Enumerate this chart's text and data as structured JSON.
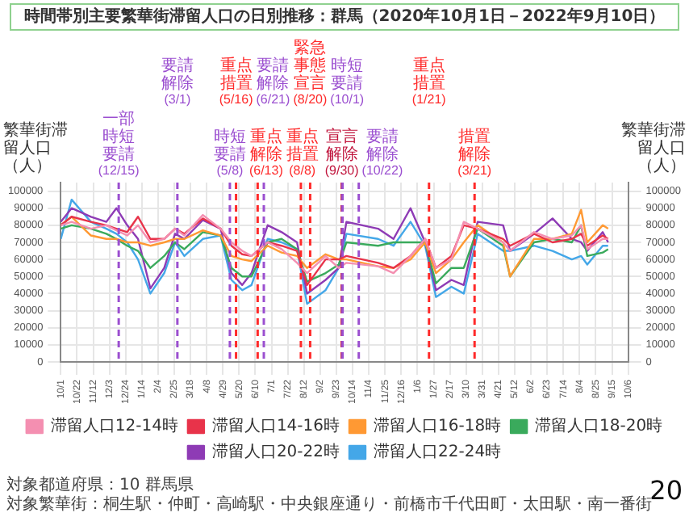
{
  "chart_data": {
    "type": "line",
    "title": "時間帯別主要繁華街滞留人口の日別推移：群馬（2020年10月1日－2022年9月10日）",
    "ylabel": "繁華街滞留人口（人）",
    "y2label": "繁華街滞留人口（人）",
    "x": [
      "2020-10-01",
      "2020-10-15",
      "2020-11-09",
      "2020-11-29",
      "2020-12-12",
      "2020-12-26",
      "2021-01-09",
      "2021-01-25",
      "2021-02-12",
      "2021-02-26",
      "2021-03-10",
      "2021-04-03",
      "2021-04-26",
      "2021-05-10",
      "2021-05-24",
      "2021-06-05",
      "2021-06-26",
      "2021-07-14",
      "2021-08-03",
      "2021-08-16",
      "2021-09-09",
      "2021-09-26",
      "2021-10-06",
      "2021-11-16",
      "2021-12-06",
      "2021-12-28",
      "2022-01-16",
      "2022-01-30",
      "2022-02-19",
      "2022-03-07",
      "2022-03-25",
      "2022-04-27",
      "2022-05-06",
      "2022-06-06",
      "2022-06-30",
      "2022-07-25",
      "2022-08-06",
      "2022-08-14",
      "2022-09-03",
      "2022-09-10"
    ],
    "series": [
      {
        "name": "滞留人口12-14時",
        "color": "#f48fb1",
        "values": [
          80000,
          82000,
          78000,
          80000,
          77000,
          74000,
          80000,
          70000,
          72000,
          78000,
          74000,
          86000,
          78000,
          70000,
          65000,
          62000,
          70000,
          66000,
          58000,
          52000,
          62000,
          55000,
          58000,
          56000,
          52000,
          62000,
          72000,
          55000,
          60000,
          82000,
          78000,
          70000,
          65000,
          76000,
          72000,
          74000,
          80000,
          66000,
          72000,
          72000
        ]
      },
      {
        "name": "滞留人口14-16時",
        "color": "#e8334a",
        "values": [
          80000,
          85000,
          82000,
          80000,
          78000,
          76000,
          85000,
          72000,
          72000,
          78000,
          75000,
          84000,
          78000,
          68000,
          63000,
          62000,
          70000,
          68000,
          65000,
          45000,
          60000,
          60000,
          62000,
          58000,
          55000,
          62000,
          72000,
          55000,
          62000,
          80000,
          78000,
          72000,
          68000,
          75000,
          70000,
          72000,
          75000,
          68000,
          74000,
          72000
        ]
      },
      {
        "name": "滞留人口16-18時",
        "color": "#ff9933",
        "values": [
          80000,
          85000,
          74000,
          72000,
          72000,
          70000,
          70000,
          68000,
          70000,
          72000,
          72000,
          77000,
          74000,
          62000,
          60000,
          59000,
          68000,
          64000,
          62000,
          55000,
          63000,
          60000,
          60000,
          56000,
          55000,
          60000,
          70000,
          52000,
          60000,
          70000,
          80000,
          70000,
          50000,
          72000,
          72000,
          75000,
          89000,
          70000,
          80000,
          78000
        ]
      },
      {
        "name": "滞留人口18-20時",
        "color": "#3aaa5c",
        "values": [
          78000,
          80000,
          78000,
          75000,
          72000,
          68000,
          65000,
          55000,
          62000,
          70000,
          66000,
          76000,
          74000,
          55000,
          50000,
          50000,
          70000,
          72000,
          66000,
          47000,
          52000,
          57000,
          70000,
          68000,
          70000,
          70000,
          70000,
          46000,
          55000,
          55000,
          78000,
          68000,
          50000,
          70000,
          72000,
          70000,
          80000,
          62000,
          64000,
          66000
        ]
      },
      {
        "name": "滞留人口20-22時",
        "color": "#8e3bb5",
        "values": [
          82000,
          90000,
          85000,
          82000,
          90000,
          80000,
          72000,
          43000,
          55000,
          75000,
          72000,
          83000,
          78000,
          52000,
          45000,
          52000,
          80000,
          76000,
          70000,
          40000,
          48000,
          55000,
          82000,
          78000,
          72000,
          90000,
          70000,
          42000,
          48000,
          45000,
          82000,
          80000,
          65000,
          75000,
          84000,
          72000,
          70000,
          65000,
          76000,
          70000
        ]
      },
      {
        "name": "滞留人口22-24時",
        "color": "#44a7e8",
        "values": [
          72000,
          95000,
          82000,
          78000,
          75000,
          70000,
          60000,
          40000,
          52000,
          70000,
          62000,
          72000,
          74000,
          48000,
          42000,
          45000,
          72000,
          70000,
          66000,
          34000,
          42000,
          55000,
          75000,
          72000,
          68000,
          82000,
          68000,
          38000,
          44000,
          40000,
          75000,
          65000,
          65000,
          68000,
          65000,
          60000,
          62000,
          57000,
          68000,
          68000
        ]
      }
    ],
    "xlim": [
      "2020-10-01",
      "2022-10-06"
    ],
    "xticks": [
      {
        "value": "2020-10-01",
        "label": "10/1"
      },
      {
        "value": "2020-10-22",
        "label": "10/22"
      },
      {
        "value": "2020-11-12",
        "label": "11/12"
      },
      {
        "value": "2020-12-03",
        "label": "12/3"
      },
      {
        "value": "2020-12-24",
        "label": "12/24"
      },
      {
        "value": "2021-01-14",
        "label": "1/14"
      },
      {
        "value": "2021-02-04",
        "label": "2/4"
      },
      {
        "value": "2021-02-25",
        "label": "2/25"
      },
      {
        "value": "2021-03-18",
        "label": "3/18"
      },
      {
        "value": "2021-04-08",
        "label": "4/8"
      },
      {
        "value": "2021-04-29",
        "label": "4/29"
      },
      {
        "value": "2021-05-20",
        "label": "5/20"
      },
      {
        "value": "2021-06-10",
        "label": "6/10"
      },
      {
        "value": "2021-07-01",
        "label": "7/1"
      },
      {
        "value": "2021-07-22",
        "label": "7/22"
      },
      {
        "value": "2021-08-12",
        "label": "8/12"
      },
      {
        "value": "2021-09-02",
        "label": "9/2"
      },
      {
        "value": "2021-09-23",
        "label": "9/23"
      },
      {
        "value": "2021-10-14",
        "label": "10/14"
      },
      {
        "value": "2021-11-04",
        "label": "11/4"
      },
      {
        "value": "2021-11-25",
        "label": "11/25"
      },
      {
        "value": "2021-12-16",
        "label": "12/16"
      },
      {
        "value": "2022-01-06",
        "label": "1/6"
      },
      {
        "value": "2022-01-27",
        "label": "1/27"
      },
      {
        "value": "2022-02-17",
        "label": "2/17"
      },
      {
        "value": "2022-03-10",
        "label": "3/10"
      },
      {
        "value": "2022-03-31",
        "label": "3/31"
      },
      {
        "value": "2022-04-21",
        "label": "4/21"
      },
      {
        "value": "2022-05-12",
        "label": "5/12"
      },
      {
        "value": "2022-06-02",
        "label": "6/2"
      },
      {
        "value": "2022-06-23",
        "label": "6/23"
      },
      {
        "value": "2022-07-14",
        "label": "7/14"
      },
      {
        "value": "2022-08-04",
        "label": "8/4"
      },
      {
        "value": "2022-08-25",
        "label": "8/25"
      },
      {
        "value": "2022-09-15",
        "label": "9/15"
      },
      {
        "value": "2022-10-06",
        "label": "10/6"
      }
    ],
    "ylim": [
      0,
      105000
    ],
    "yticks": [
      0,
      10000,
      20000,
      30000,
      40000,
      50000,
      60000,
      70000,
      80000,
      90000,
      100000
    ],
    "y2lim": [
      0,
      105000
    ],
    "y2ticks": [
      0,
      10000,
      20000,
      30000,
      40000,
      50000,
      60000,
      70000,
      80000,
      90000,
      100000
    ],
    "ref_lines": [
      {
        "axis": "x",
        "value": "2020-12-15",
        "label": "一部時短要請(12/15)",
        "color": "#9b4fd0",
        "line_style": "dashed"
      },
      {
        "axis": "x",
        "value": "2021-03-01",
        "label": "要請解除(3/1)",
        "color": "#9b4fd0",
        "line_style": "dashed"
      },
      {
        "axis": "x",
        "value": "2021-05-08",
        "label": "時短要請(5/8)",
        "color": "#9b4fd0",
        "line_style": "dashed"
      },
      {
        "axis": "x",
        "value": "2021-05-16",
        "label": "重点措置(5/16)",
        "color": "#ff2a2a",
        "line_style": "dashed"
      },
      {
        "axis": "x",
        "value": "2021-06-13",
        "label": "重点解除(6/13)",
        "color": "#ff2a2a",
        "line_style": "dashed"
      },
      {
        "axis": "x",
        "value": "2021-06-21",
        "label": "要請解除(6/21)",
        "color": "#9b4fd0",
        "line_style": "dashed"
      },
      {
        "axis": "x",
        "value": "2021-08-08",
        "label": "重点措置(8/8)",
        "color": "#ff2a2a",
        "line_style": "dashed"
      },
      {
        "axis": "x",
        "value": "2021-08-20",
        "label": "緊急事態宣言(8/20)",
        "color": "#ff2a2a",
        "line_style": "dashed"
      },
      {
        "axis": "x",
        "value": "2021-09-30",
        "label": "宣言解除(9/30)",
        "color": "#c0143c",
        "line_style": "dashed"
      },
      {
        "axis": "x",
        "value": "2021-10-01",
        "label": "時短要請(10/1)",
        "color": "#9b4fd0",
        "line_style": "dashed"
      },
      {
        "axis": "x",
        "value": "2021-10-22",
        "label": "要請解除(10/22)",
        "color": "#9b4fd0",
        "line_style": "dashed"
      },
      {
        "axis": "x",
        "value": "2022-01-21",
        "label": "重点措置(1/21)",
        "color": "#ff2a2a",
        "line_style": "dashed"
      },
      {
        "axis": "x",
        "value": "2022-03-21",
        "label": "措置解除(3/21)",
        "color": "#ff2a2a",
        "line_style": "dashed"
      }
    ],
    "annotations": [
      "対象都道府県：10 群馬県",
      "対象繁華街：桐生駅・仲町・高崎駅・中央銀座通り・前橋市千代田町・太田駅・南一番街",
      "20"
    ],
    "grid": true,
    "legend": "bottom",
    "marker": "none",
    "line_style": "solid"
  }
}
